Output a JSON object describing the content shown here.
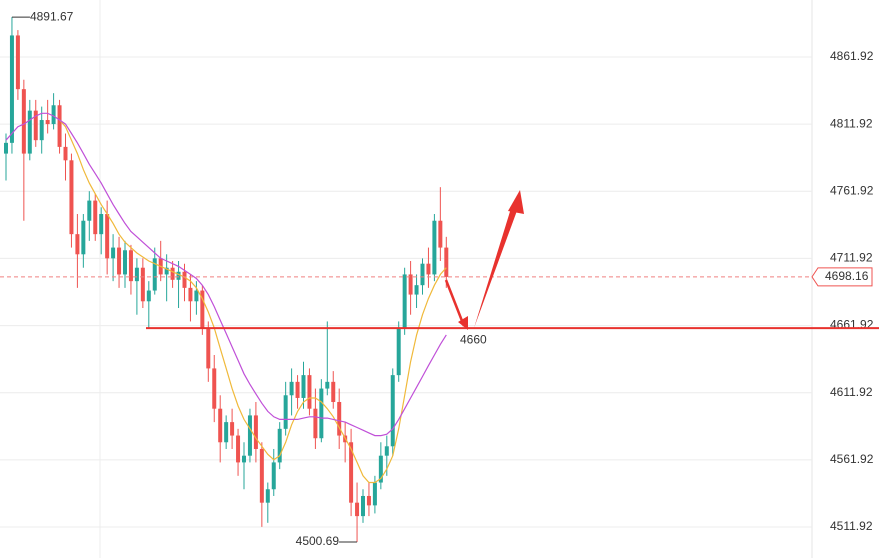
{
  "chart_data": {
    "type": "candlestick",
    "ylim": [
      4488.8,
      4904.4
    ],
    "yticks": [
      4511.92,
      4561.92,
      4611.92,
      4661.92,
      4711.92,
      4761.92,
      4811.92,
      4861.92
    ],
    "grid": true,
    "up_color": "#26a69a",
    "down_color": "#ef5350",
    "open": [
      4790,
      4798,
      4878,
      4838,
      4790,
      4822,
      4800,
      4815,
      4812,
      4826,
      4795,
      4785,
      4730,
      4715,
      4740,
      4755,
      4730,
      4745,
      4712,
      4720,
      4700,
      4718,
      4695,
      4705,
      4680,
      4688,
      4712,
      4700,
      4705,
      4696,
      4702,
      4690,
      4680,
      4688,
      4660,
      4630,
      4600,
      4575,
      4590,
      4580,
      4560,
      4565,
      4595,
      4570,
      4530,
      4540,
      4560,
      4585,
      4610,
      4620,
      4608,
      4625,
      4600,
      4578,
      4615,
      4620,
      4605,
      4580,
      4575,
      4530,
      4520,
      4535,
      4528,
      4545,
      4565,
      4572,
      4625,
      4660,
      4700,
      4685,
      4692,
      4708,
      4700,
      4740,
      4720
    ],
    "high": [
      4805,
      4891.67,
      4882,
      4845,
      4830,
      4830,
      4825,
      4830,
      4835,
      4830,
      4805,
      4790,
      4745,
      4745,
      4762,
      4760,
      4750,
      4755,
      4730,
      4728,
      4725,
      4722,
      4712,
      4712,
      4695,
      4720,
      4725,
      4715,
      4710,
      4710,
      4708,
      4700,
      4695,
      4692,
      4665,
      4640,
      4610,
      4595,
      4600,
      4585,
      4575,
      4600,
      4605,
      4575,
      4545,
      4570,
      4590,
      4620,
      4630,
      4625,
      4635,
      4630,
      4615,
      4622,
      4665,
      4628,
      4615,
      4590,
      4585,
      4545,
      4540,
      4545,
      4550,
      4575,
      4580,
      4630,
      4665,
      4705,
      4710,
      4700,
      4712,
      4720,
      4745,
      4765,
      4728
    ],
    "low": [
      4770,
      4790,
      4830,
      4740,
      4785,
      4795,
      4790,
      4805,
      4808,
      4790,
      4770,
      4720,
      4690,
      4705,
      4725,
      4725,
      4715,
      4700,
      4695,
      4690,
      4690,
      4685,
      4670,
      4675,
      4660,
      4685,
      4695,
      4680,
      4690,
      4675,
      4680,
      4665,
      4670,
      4655,
      4620,
      4590,
      4560,
      4570,
      4570,
      4550,
      4540,
      4560,
      4560,
      4512,
      4515,
      4535,
      4555,
      4580,
      4595,
      4600,
      4600,
      4595,
      4570,
      4575,
      4610,
      4600,
      4570,
      4560,
      4520,
      4500.69,
      4515,
      4520,
      4522,
      4540,
      4550,
      4565,
      4620,
      4655,
      4670,
      4675,
      4685,
      4690,
      4695,
      4710,
      4690
    ],
    "close": [
      4798,
      4878,
      4838,
      4790,
      4822,
      4800,
      4815,
      4812,
      4826,
      4795,
      4785,
      4730,
      4715,
      4740,
      4755,
      4730,
      4745,
      4712,
      4720,
      4700,
      4718,
      4695,
      4705,
      4680,
      4688,
      4712,
      4700,
      4705,
      4696,
      4702,
      4690,
      4680,
      4688,
      4660,
      4630,
      4600,
      4575,
      4590,
      4580,
      4560,
      4565,
      4595,
      4570,
      4530,
      4540,
      4560,
      4585,
      4610,
      4620,
      4608,
      4625,
      4600,
      4578,
      4615,
      4620,
      4605,
      4580,
      4575,
      4530,
      4520,
      4535,
      4528,
      4545,
      4565,
      4572,
      4625,
      4660,
      4700,
      4685,
      4692,
      4708,
      4700,
      4740,
      4720,
      4698.16
    ],
    "ma_lines": [
      {
        "color": "#f0b93a",
        "values": [
          null,
          null,
          null,
          null,
          null,
          null,
          null,
          null,
          null,
          4815,
          4810,
          4800,
          4790,
          4778,
          4768,
          4760,
          4752,
          4745,
          4738,
          4730,
          4724,
          4720,
          4716,
          4713,
          4710,
          4708,
          4706,
          4704,
          4702,
          4700,
          4698,
          4695,
          4690,
          4682,
          4672,
          4660,
          4645,
          4630,
          4615,
          4602,
          4592,
          4585,
          4578,
          4572,
          4566,
          4562,
          4565,
          4575,
          4588,
          4598,
          4605,
          4608,
          4608,
          4605,
          4600,
          4594,
          4586,
          4578,
          4570,
          4560,
          4550,
          4545,
          4545,
          4548,
          4555,
          4565,
          4585,
          4610,
          4635,
          4655,
          4670,
          4682,
          4692,
          4700,
          4705
        ]
      },
      {
        "color": "#c050d8",
        "values": [
          4800,
          4805,
          4810,
          4812,
          4815,
          4818,
          4820,
          4820,
          4818,
          4815,
          4812,
          4805,
          4798,
          4790,
          4782,
          4775,
          4768,
          4760,
          4752,
          4745,
          4738,
          4732,
          4728,
          4724,
          4720,
          4716,
          4712,
          4710,
          4708,
          4706,
          4703,
          4700,
          4697,
          4692,
          4685,
          4676,
          4666,
          4656,
          4646,
          4636,
          4626,
          4618,
          4611,
          4604,
          4598,
          4594,
          4592,
          4592,
          4592,
          4592,
          4593,
          4594,
          4594,
          4593,
          4593,
          4592,
          4591,
          4590,
          4588,
          4586,
          4584,
          4582,
          4580,
          4580,
          4581,
          4585,
          4592,
          4600,
          4608,
          4616,
          4624,
          4632,
          4640,
          4648,
          4655
        ]
      }
    ],
    "max_marker": 4891.67,
    "min_marker": 4500.69,
    "support_level": 4660,
    "last_price": 4698.16
  }
}
